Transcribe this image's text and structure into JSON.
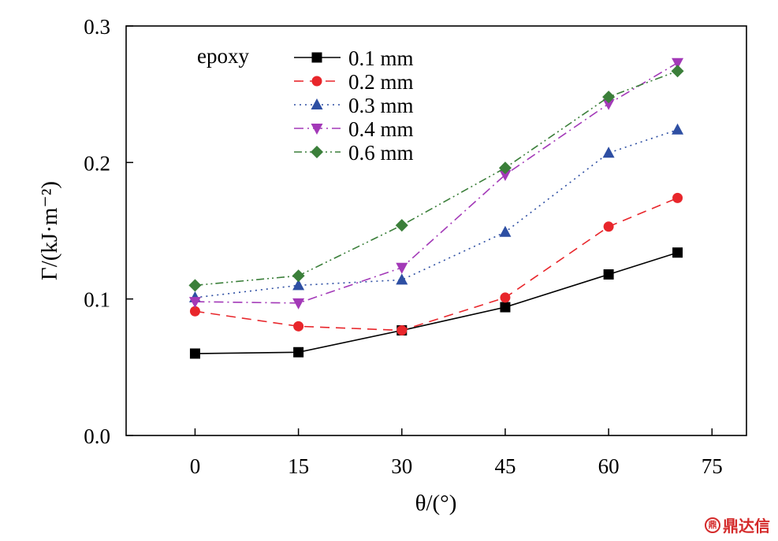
{
  "chart_data": {
    "type": "line",
    "xlabel": "θ/(°)",
    "ylabel": "Γ/(kJ·m⁻²)",
    "xlim": [
      -10,
      80
    ],
    "ylim": [
      0,
      0.3
    ],
    "xticks": [
      0,
      15,
      30,
      45,
      60,
      75
    ],
    "xtick_labels": [
      "0",
      "15",
      "30",
      "45",
      "60",
      "75"
    ],
    "yticks": [
      0.0,
      0.1,
      0.2,
      0.3
    ],
    "ytick_labels": [
      "0.0",
      "0.1",
      "0.2",
      "0.3"
    ],
    "grid": false,
    "legend_title": "epoxy",
    "legend_position": "top-left",
    "x": [
      0,
      15,
      30,
      45,
      60,
      70
    ],
    "series": [
      {
        "name": "0.1 mm",
        "color": "#000000",
        "marker": "square",
        "dash": "solid",
        "values": [
          0.06,
          0.061,
          0.077,
          0.094,
          0.118,
          0.134
        ]
      },
      {
        "name": "0.2 mm",
        "color": "#e8262b",
        "marker": "circle",
        "dash": "dashed",
        "values": [
          0.091,
          0.08,
          0.077,
          0.101,
          0.153,
          0.174
        ]
      },
      {
        "name": "0.3 mm",
        "color": "#2e4fa3",
        "marker": "triangle-up",
        "dash": "dotted",
        "values": [
          0.101,
          0.11,
          0.114,
          0.149,
          0.207,
          0.224
        ]
      },
      {
        "name": "0.4 mm",
        "color": "#a339b8",
        "marker": "triangle-down",
        "dash": "dash-dot",
        "values": [
          0.098,
          0.097,
          0.123,
          0.191,
          0.243,
          0.273
        ]
      },
      {
        "name": "0.6 mm",
        "color": "#3b7f3a",
        "marker": "diamond",
        "dash": "dash-dot-dot",
        "values": [
          0.11,
          0.117,
          0.154,
          0.196,
          0.248,
          0.267
        ]
      }
    ]
  },
  "watermark": {
    "logo_text": "鼎",
    "text": "鼎达信"
  }
}
